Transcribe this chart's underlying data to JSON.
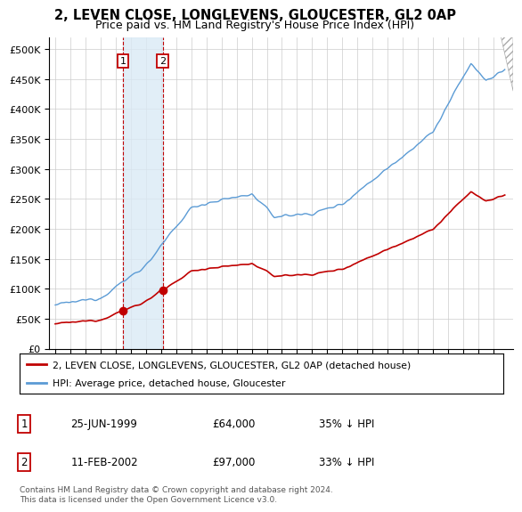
{
  "title": "2, LEVEN CLOSE, LONGLEVENS, GLOUCESTER, GL2 0AP",
  "subtitle": "Price paid vs. HM Land Registry's House Price Index (HPI)",
  "title_fontsize": 10.5,
  "subtitle_fontsize": 9,
  "ylabel_ticks": [
    "£0",
    "£50K",
    "£100K",
    "£150K",
    "£200K",
    "£250K",
    "£300K",
    "£350K",
    "£400K",
    "£450K",
    "£500K"
  ],
  "ytick_vals": [
    0,
    50000,
    100000,
    150000,
    200000,
    250000,
    300000,
    350000,
    400000,
    450000,
    500000
  ],
  "ylim": [
    0,
    520000
  ],
  "legend_line1": "2, LEVEN CLOSE, LONGLEVENS, GLOUCESTER, GL2 0AP (detached house)",
  "legend_line2": "HPI: Average price, detached house, Gloucester",
  "transaction1_date": "25-JUN-1999",
  "transaction1_price": "£64,000",
  "transaction1_hpi": "35% ↓ HPI",
  "transaction2_date": "11-FEB-2002",
  "transaction2_price": "£97,000",
  "transaction2_hpi": "33% ↓ HPI",
  "footnote": "Contains HM Land Registry data © Crown copyright and database right 2024.\nThis data is licensed under the Open Government Licence v3.0.",
  "hpi_color": "#5b9bd5",
  "price_color": "#c00000",
  "shade_color": "#daeaf5",
  "shade_x1": 1999.48,
  "shade_x2": 2002.12,
  "xlim_left": 1994.6,
  "xlim_right": 2025.3
}
